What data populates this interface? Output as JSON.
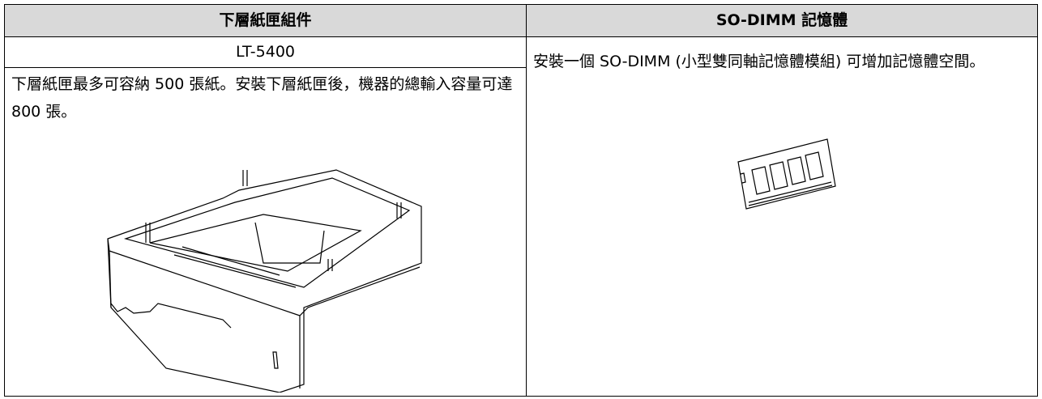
{
  "table": {
    "header": [
      "下層紙匣組件",
      "SO-DIMM 記憶體"
    ],
    "left": {
      "model": "LT-5400",
      "description": "下層紙匣最多可容納 500 張紙。安裝下層紙匣後，機器的總輸入容量可達 800 張。"
    },
    "right": {
      "description": "安裝一個 SO-DIMM (小型雙同軸記憶體模組) 可增加記憶體空間。"
    }
  }
}
